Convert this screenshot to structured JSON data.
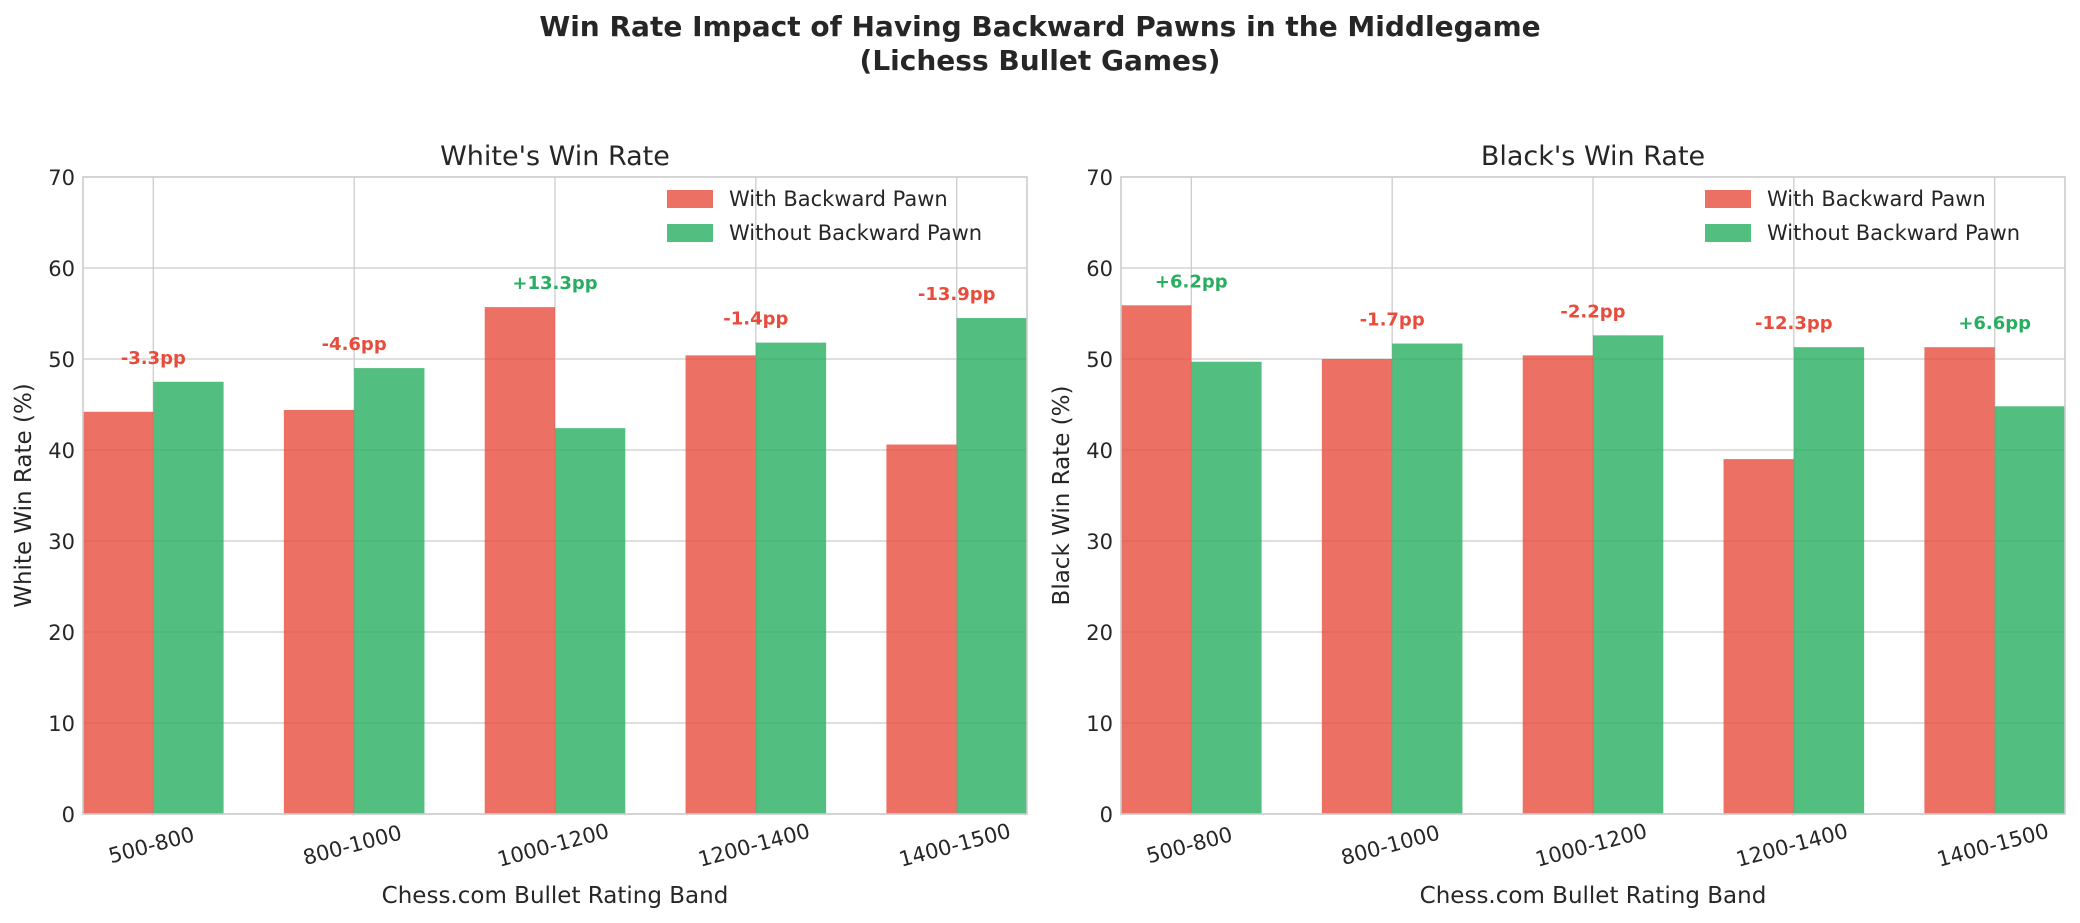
{
  "figure": {
    "title_line1": "Win Rate Impact of Having Backward Pawns in the Middlegame",
    "title_line2": "(Lichess Bullet Games)"
  },
  "colors": {
    "with": "#e74c3c",
    "without": "#27ae60",
    "negative_label": "#e74c3c",
    "positive_label": "#27ae60",
    "grid": "#cccccc",
    "spine": "#cccccc"
  },
  "chart_data": [
    {
      "type": "bar",
      "title": "White's Win Rate",
      "xlabel": "Chess.com Bullet Rating Band",
      "ylabel": "White Win Rate (%)",
      "ylim": [
        0,
        70
      ],
      "yticks": [
        0,
        10,
        20,
        30,
        40,
        50,
        60,
        70
      ],
      "grid": true,
      "legend_position": "top-right",
      "categories": [
        "500-800",
        "800-1000",
        "1000-1200",
        "1200-1400",
        "1400-1500"
      ],
      "series": [
        {
          "name": "With Backward Pawn",
          "values": [
            44.2,
            44.4,
            55.7,
            50.4,
            40.6
          ]
        },
        {
          "name": "Without Backward Pawn",
          "values": [
            47.5,
            49.0,
            42.4,
            51.8,
            54.5
          ]
        }
      ],
      "annotations": [
        "-3.3pp",
        "-4.6pp",
        "+13.3pp",
        "-1.4pp",
        "-13.9pp"
      ]
    },
    {
      "type": "bar",
      "title": "Black's Win Rate",
      "xlabel": "Chess.com Bullet Rating Band",
      "ylabel": "Black Win Rate (%)",
      "ylim": [
        0,
        70
      ],
      "yticks": [
        0,
        10,
        20,
        30,
        40,
        50,
        60,
        70
      ],
      "grid": true,
      "legend_position": "top-right",
      "categories": [
        "500-800",
        "800-1000",
        "1000-1200",
        "1200-1400",
        "1400-1500"
      ],
      "series": [
        {
          "name": "With Backward Pawn",
          "values": [
            55.9,
            50.0,
            50.4,
            39.0,
            51.3
          ]
        },
        {
          "name": "Without Backward Pawn",
          "values": [
            49.7,
            51.7,
            52.6,
            51.3,
            44.8
          ]
        }
      ],
      "annotations": [
        "+6.2pp",
        "-1.7pp",
        "-2.2pp",
        "-12.3pp",
        "+6.6pp"
      ]
    }
  ]
}
